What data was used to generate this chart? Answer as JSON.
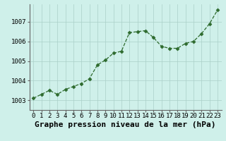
{
  "hours": [
    0,
    1,
    2,
    3,
    4,
    5,
    6,
    7,
    8,
    9,
    10,
    11,
    12,
    13,
    14,
    15,
    16,
    17,
    18,
    19,
    20,
    21,
    22,
    23
  ],
  "pressure": [
    1003.1,
    1003.3,
    1003.5,
    1003.3,
    1003.55,
    1003.7,
    1003.85,
    1004.1,
    1004.8,
    1005.05,
    1005.4,
    1005.5,
    1006.45,
    1006.5,
    1006.55,
    1006.2,
    1005.75,
    1005.65,
    1005.65,
    1005.9,
    1006.0,
    1006.4,
    1006.9,
    1007.6
  ],
  "line_color": "#2d6a2d",
  "marker": "D",
  "marker_size": 2.5,
  "bg_color": "#cff0ea",
  "grid_color": "#aacfc8",
  "xlabel": "Graphe pression niveau de la mer (hPa)",
  "xlabel_fontsize": 8,
  "xlabel_fontweight": "bold",
  "ylim": [
    1002.5,
    1007.9
  ],
  "yticks": [
    1003,
    1004,
    1005,
    1006,
    1007
  ],
  "xticks": [
    0,
    1,
    2,
    3,
    4,
    5,
    6,
    7,
    8,
    9,
    10,
    11,
    12,
    13,
    14,
    15,
    16,
    17,
    18,
    19,
    20,
    21,
    22,
    23
  ],
  "tick_fontsize": 6.5,
  "linewidth": 0.9
}
